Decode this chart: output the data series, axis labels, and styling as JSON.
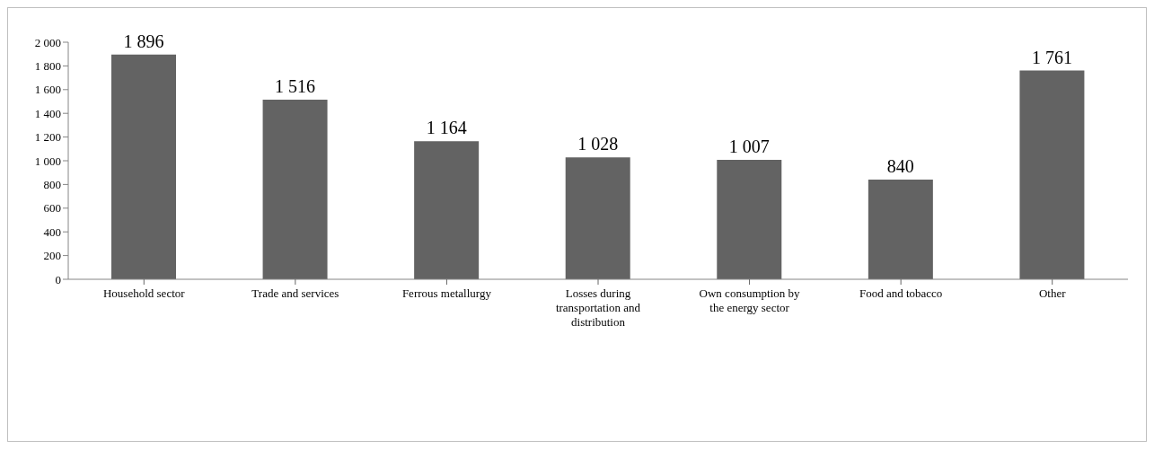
{
  "chart_data": {
    "type": "bar",
    "categories": [
      "Household sector",
      "Trade and services",
      "Ferrous metallurgy",
      "Losses during transportation and distribution",
      "Own consumption by the energy sector",
      "Food and tobacco",
      "Other"
    ],
    "values": [
      1896,
      1516,
      1164,
      1028,
      1007,
      840,
      1761
    ],
    "value_labels": [
      "1 896",
      "1 516",
      "1 164",
      "1 028",
      "1 007",
      "840",
      "1 761"
    ],
    "color": "#636363",
    "ylim": [
      0,
      2000
    ],
    "yticks": [
      0,
      200,
      400,
      600,
      800,
      {
        "value": 1000,
        "label": "1 000"
      },
      {
        "value": 1200,
        "label": "1 200"
      },
      {
        "value": 1400,
        "label": "1 400"
      },
      {
        "value": 1600,
        "label": "1 600"
      },
      {
        "value": 1800,
        "label": "1 800"
      },
      {
        "value": 2000,
        "label": "2 000"
      }
    ],
    "grid": false,
    "legend": false
  }
}
